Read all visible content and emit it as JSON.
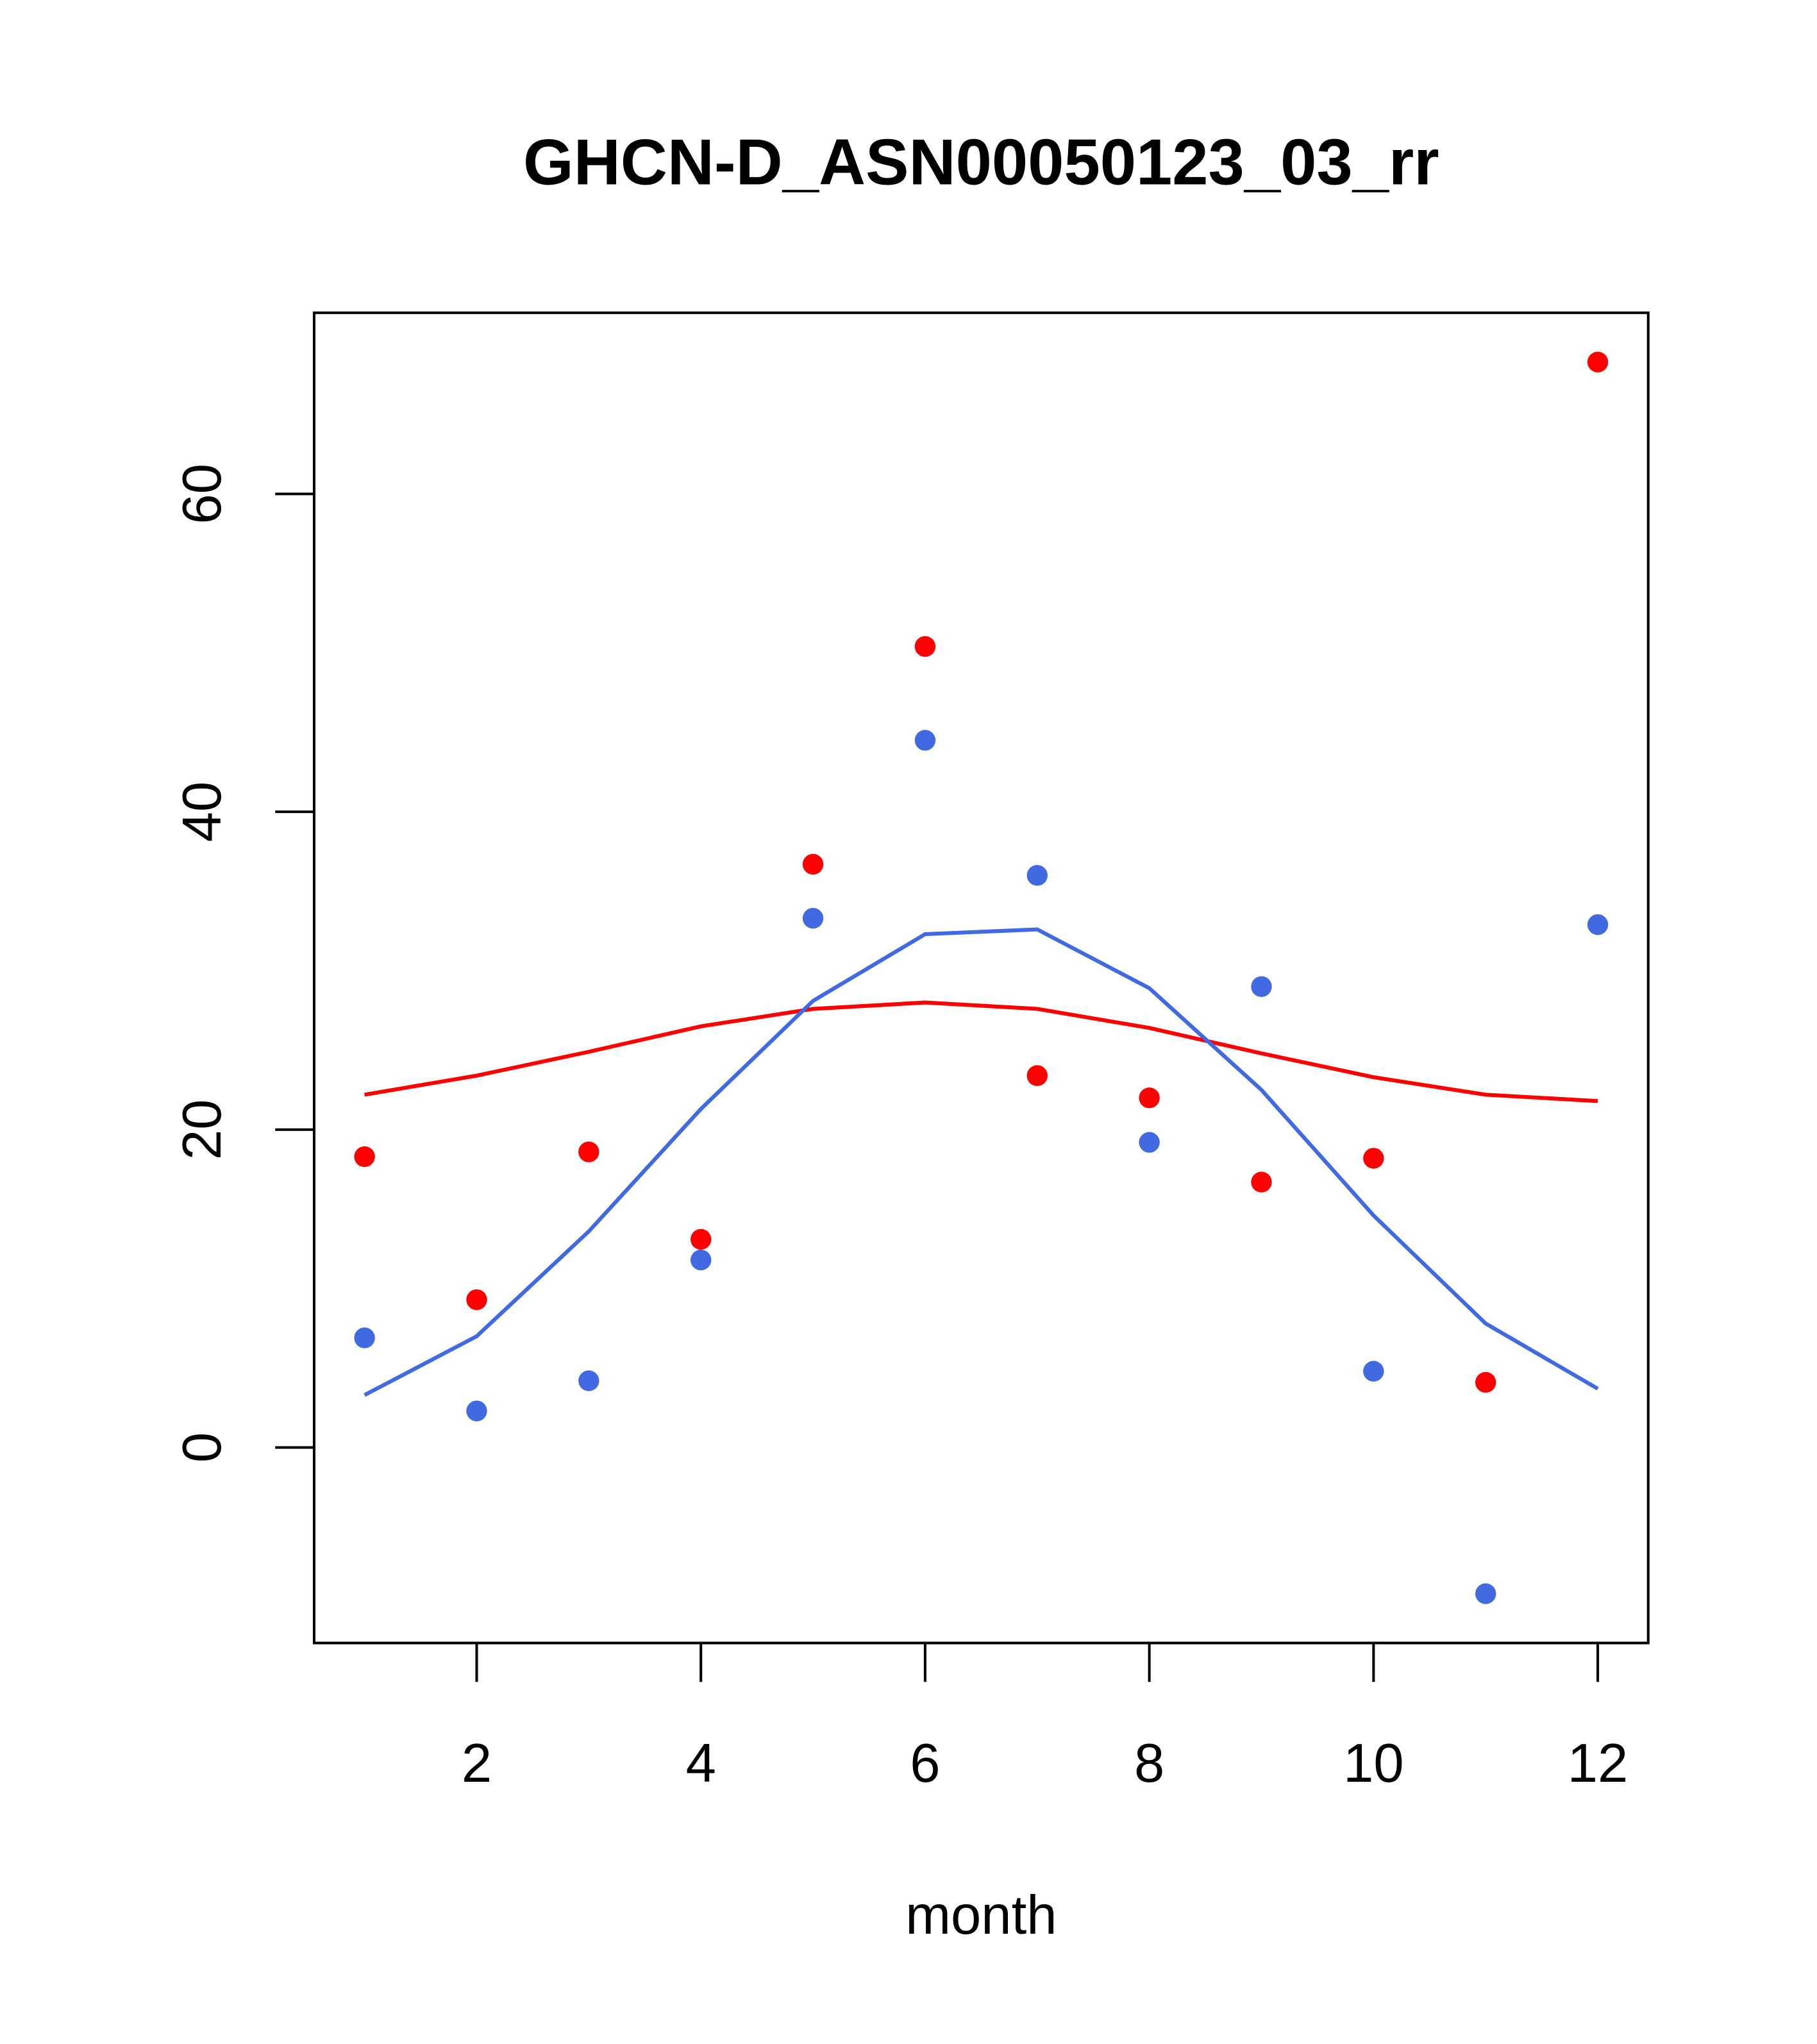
{
  "chart_data": {
    "type": "scatter",
    "title": "GHCN-D_ASN00050123_03_rr",
    "xlabel": "month",
    "ylabel": "",
    "xlim": [
      0.55,
      12.45
    ],
    "ylim": [
      -12.3,
      71.4
    ],
    "xticks": [
      2,
      4,
      6,
      8,
      10,
      12
    ],
    "yticks": [
      0,
      20,
      40,
      60
    ],
    "grid": false,
    "x": [
      1,
      2,
      3,
      4,
      5,
      6,
      7,
      8,
      9,
      10,
      11,
      12
    ],
    "series": [
      {
        "name": "red points",
        "kind": "points",
        "color": "#ff0000",
        "values": [
          18.3,
          9.3,
          18.6,
          13.1,
          36.7,
          50.4,
          23.4,
          22.0,
          16.7,
          18.2,
          4.1,
          68.3
        ]
      },
      {
        "name": "blue points",
        "kind": "points",
        "color": "#4169e1",
        "values": [
          6.9,
          2.3,
          4.2,
          11.8,
          33.3,
          44.5,
          36.0,
          19.2,
          29.0,
          4.8,
          -9.2,
          32.9
        ]
      },
      {
        "name": "red line",
        "kind": "line",
        "color": "#ff0000",
        "values": [
          22.2,
          23.4,
          24.9,
          26.5,
          27.6,
          28.0,
          27.6,
          26.4,
          24.8,
          23.3,
          22.2,
          21.8
        ]
      },
      {
        "name": "blue line",
        "kind": "line",
        "color": "#4169e1",
        "values": [
          3.3,
          7.0,
          13.6,
          21.3,
          28.1,
          32.3,
          32.6,
          28.9,
          22.5,
          14.6,
          7.8,
          3.7
        ]
      }
    ]
  }
}
